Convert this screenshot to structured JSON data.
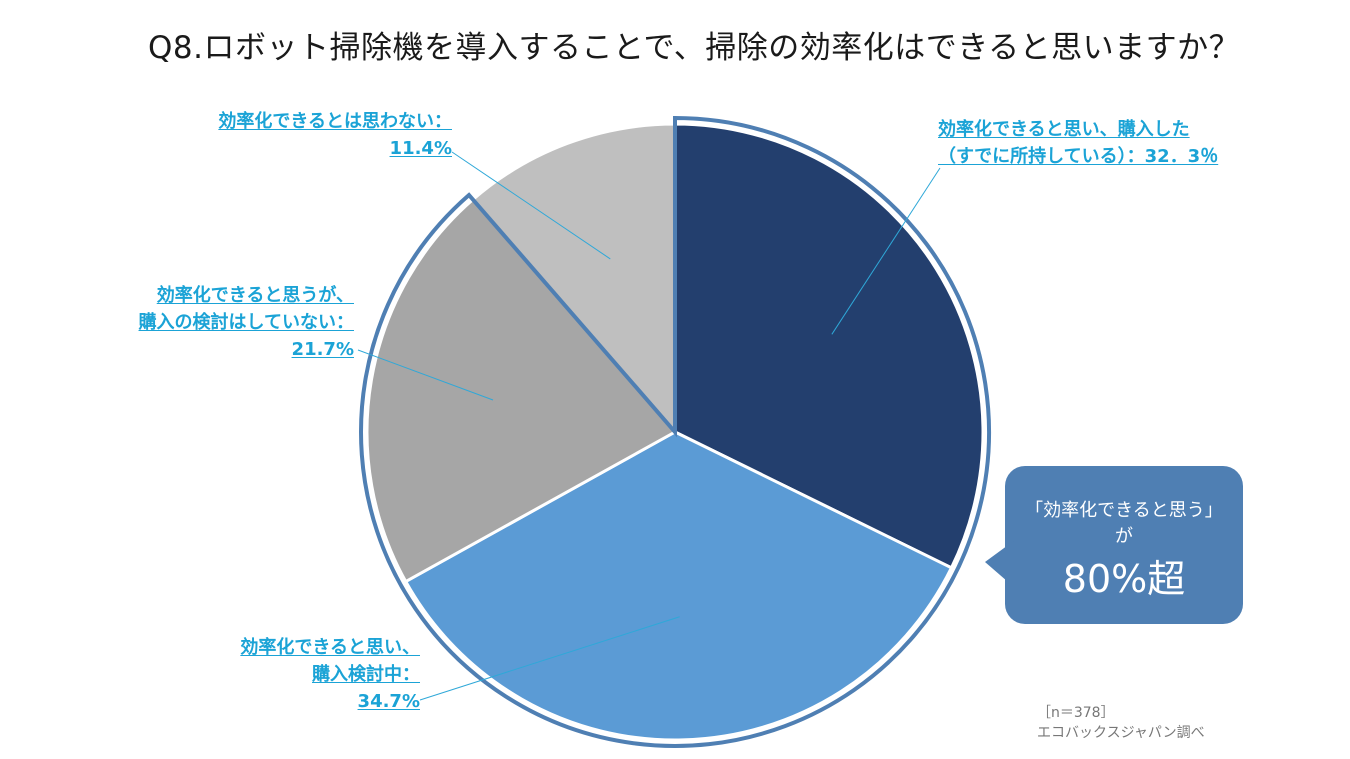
{
  "title": "Q8.ロボット掃除機を導入することで、掃除の効率化はできると思いますか？",
  "chart_data": {
    "type": "pie",
    "start": "12 o'clock, clockwise",
    "slices": [
      {
        "lines": [
          "効率化できると思い、購入した",
          "（すでに所持している）：32．3％"
        ],
        "value": 32.3,
        "color": "#233f6e"
      },
      {
        "lines": [
          "効率化できると思い、",
          "購入検討中：",
          "34.7%"
        ],
        "value": 34.7,
        "color": "#5b9bd5"
      },
      {
        "lines": [
          "効率化できると思うが、",
          "購入の検討はしていない：",
          "21.7%"
        ],
        "value": 21.7,
        "color": "#a6a6a6"
      },
      {
        "lines": [
          "効率化できるとは思わない：",
          "11.4%"
        ],
        "value": 11.4,
        "color": "#bfbfbf"
      }
    ]
  },
  "callout": {
    "line1": "「効率化できると思う」",
    "line2": "が",
    "line3": "80%超"
  },
  "source": {
    "n": "［n＝378］",
    "org": "エコバックスジャパン調べ"
  }
}
